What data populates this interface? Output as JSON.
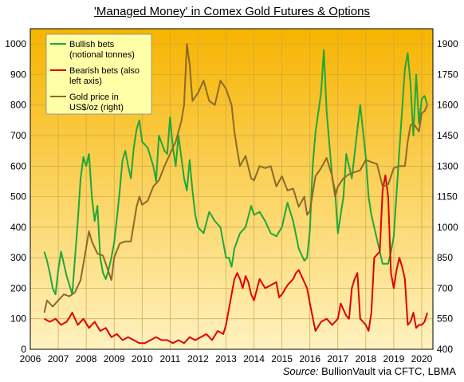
{
  "chart_data": {
    "type": "line",
    "title": "'Managed Money' in Comex Gold Futures & Options",
    "source_label": "Source:",
    "source_text": "BullionVault via CFTC, LBMA",
    "x_ticks": [
      "2006",
      "2007",
      "2008",
      "2009",
      "2010",
      "2011",
      "2012",
      "2013",
      "2014",
      "2015",
      "2016",
      "2017",
      "2018",
      "2019",
      "2020"
    ],
    "xlim": [
      2006,
      2020.4
    ],
    "ylim_left": [
      0,
      1050
    ],
    "ylim_right": [
      400,
      1975
    ],
    "y_ticks_left": [
      0,
      100,
      200,
      300,
      400,
      500,
      600,
      700,
      800,
      900,
      1000
    ],
    "y_ticks_right": [
      400,
      550,
      700,
      850,
      1000,
      1150,
      1300,
      1450,
      1600,
      1750,
      1900
    ],
    "legend_position": "top-left",
    "grid": true,
    "colors": {
      "bullish": "#1fa83a",
      "bearish": "#e00000",
      "gold": "#8a6a2a",
      "background_top": "#f7b400",
      "background_bottom": "#fff2c0",
      "legend_bg": "#ffffa8"
    },
    "series": [
      {
        "name": "Bullish bets (notional tonnes)",
        "axis": "left",
        "x": [
          2006.5,
          2006.6,
          2006.7,
          2006.8,
          2006.9,
          2007.0,
          2007.1,
          2007.2,
          2007.3,
          2007.5,
          2007.6,
          2007.7,
          2007.8,
          2007.9,
          2008.0,
          2008.1,
          2008.2,
          2008.3,
          2008.4,
          2008.5,
          2008.6,
          2008.7,
          2008.8,
          2008.9,
          2009.0,
          2009.1,
          2009.2,
          2009.3,
          2009.4,
          2009.5,
          2009.6,
          2009.7,
          2009.8,
          2009.9,
          2010.0,
          2010.2,
          2010.4,
          2010.5,
          2010.6,
          2010.8,
          2010.9,
          2011.0,
          2011.1,
          2011.2,
          2011.3,
          2011.5,
          2011.6,
          2011.7,
          2011.8,
          2011.9,
          2012.0,
          2012.2,
          2012.4,
          2012.6,
          2012.8,
          2012.9,
          2013.0,
          2013.1,
          2013.2,
          2013.3,
          2013.5,
          2013.7,
          2013.9,
          2014.0,
          2014.2,
          2014.4,
          2014.6,
          2014.8,
          2015.0,
          2015.2,
          2015.4,
          2015.6,
          2015.8,
          2015.9,
          2016.0,
          2016.1,
          2016.2,
          2016.4,
          2016.5,
          2016.6,
          2016.8,
          2016.9,
          2017.0,
          2017.2,
          2017.3,
          2017.5,
          2017.7,
          2017.8,
          2018.0,
          2018.1,
          2018.2,
          2018.4,
          2018.6,
          2018.8,
          2018.9,
          2019.0,
          2019.2,
          2019.4,
          2019.5,
          2019.6,
          2019.7,
          2019.8,
          2019.9,
          2020.0,
          2020.1,
          2020.2
        ],
        "y": [
          320,
          290,
          250,
          200,
          180,
          260,
          320,
          280,
          240,
          180,
          300,
          420,
          560,
          630,
          600,
          640,
          500,
          420,
          470,
          300,
          250,
          230,
          260,
          300,
          350,
          430,
          520,
          620,
          650,
          600,
          560,
          660,
          720,
          750,
          680,
          660,
          600,
          550,
          700,
          650,
          640,
          760,
          660,
          600,
          700,
          560,
          520,
          620,
          520,
          440,
          400,
          380,
          450,
          420,
          400,
          350,
          300,
          300,
          270,
          330,
          380,
          400,
          470,
          440,
          450,
          420,
          380,
          370,
          400,
          480,
          420,
          330,
          290,
          300,
          390,
          600,
          710,
          840,
          980,
          780,
          560,
          520,
          380,
          500,
          640,
          560,
          720,
          800,
          630,
          500,
          440,
          360,
          280,
          280,
          320,
          370,
          650,
          920,
          970,
          870,
          700,
          900,
          740,
          820,
          830,
          800
        ]
      },
      {
        "name": "Bearish bets (also left axis)",
        "axis": "left",
        "x": [
          2006.5,
          2006.7,
          2006.9,
          2007.1,
          2007.3,
          2007.5,
          2007.7,
          2007.9,
          2008.1,
          2008.3,
          2008.5,
          2008.7,
          2008.9,
          2009.1,
          2009.3,
          2009.5,
          2009.7,
          2009.9,
          2010.1,
          2010.3,
          2010.5,
          2010.7,
          2010.9,
          2011.1,
          2011.3,
          2011.5,
          2011.7,
          2011.9,
          2012.1,
          2012.3,
          2012.5,
          2012.7,
          2012.9,
          2013.0,
          2013.1,
          2013.2,
          2013.3,
          2013.4,
          2013.5,
          2013.6,
          2013.7,
          2013.8,
          2013.9,
          2014.0,
          2014.2,
          2014.4,
          2014.6,
          2014.8,
          2014.9,
          2015.0,
          2015.2,
          2015.4,
          2015.5,
          2015.6,
          2015.7,
          2015.8,
          2015.9,
          2016.0,
          2016.2,
          2016.4,
          2016.6,
          2016.8,
          2016.9,
          2017.0,
          2017.1,
          2017.3,
          2017.4,
          2017.5,
          2017.6,
          2017.7,
          2017.8,
          2017.9,
          2018.0,
          2018.1,
          2018.2,
          2018.3,
          2018.5,
          2018.6,
          2018.7,
          2018.8,
          2018.9,
          2019.0,
          2019.1,
          2019.2,
          2019.3,
          2019.4,
          2019.5,
          2019.6,
          2019.7,
          2019.8,
          2019.9,
          2020.0,
          2020.1,
          2020.2
        ],
        "y": [
          100,
          90,
          100,
          80,
          90,
          120,
          80,
          100,
          70,
          90,
          60,
          70,
          40,
          50,
          30,
          40,
          30,
          20,
          20,
          30,
          40,
          30,
          30,
          20,
          30,
          20,
          40,
          30,
          40,
          50,
          30,
          60,
          50,
          80,
          130,
          180,
          230,
          250,
          230,
          200,
          240,
          220,
          180,
          160,
          230,
          200,
          210,
          220,
          170,
          180,
          210,
          230,
          250,
          260,
          240,
          220,
          200,
          150,
          60,
          90,
          100,
          80,
          90,
          100,
          150,
          110,
          100,
          200,
          230,
          250,
          100,
          90,
          80,
          60,
          120,
          300,
          320,
          520,
          570,
          500,
          250,
          200,
          260,
          300,
          270,
          230,
          80,
          90,
          120,
          70,
          80,
          80,
          90,
          120
        ]
      },
      {
        "name": "Gold price in US$/oz (right)",
        "axis": "right",
        "x": [
          2006.5,
          2006.6,
          2006.8,
          2007.0,
          2007.2,
          2007.4,
          2007.6,
          2007.8,
          2008.0,
          2008.1,
          2008.2,
          2008.4,
          2008.6,
          2008.8,
          2008.9,
          2009.0,
          2009.2,
          2009.4,
          2009.6,
          2009.8,
          2009.9,
          2010.0,
          2010.2,
          2010.4,
          2010.6,
          2010.8,
          2011.0,
          2011.2,
          2011.4,
          2011.5,
          2011.6,
          2011.7,
          2011.8,
          2012.0,
          2012.2,
          2012.4,
          2012.6,
          2012.8,
          2013.0,
          2013.2,
          2013.3,
          2013.4,
          2013.5,
          2013.7,
          2013.9,
          2014.0,
          2014.2,
          2014.4,
          2014.6,
          2014.8,
          2015.0,
          2015.2,
          2015.4,
          2015.6,
          2015.8,
          2015.9,
          2016.0,
          2016.2,
          2016.4,
          2016.6,
          2016.8,
          2016.9,
          2017.0,
          2017.2,
          2017.4,
          2017.6,
          2017.8,
          2018.0,
          2018.2,
          2018.4,
          2018.6,
          2018.8,
          2019.0,
          2019.2,
          2019.4,
          2019.5,
          2019.6,
          2019.7,
          2019.9,
          2020.0,
          2020.1,
          2020.2
        ],
        "y": [
          580,
          640,
          610,
          640,
          670,
          660,
          680,
          740,
          900,
          980,
          930,
          870,
          860,
          780,
          740,
          850,
          920,
          930,
          930,
          1100,
          1150,
          1110,
          1130,
          1200,
          1230,
          1300,
          1360,
          1420,
          1520,
          1600,
          1900,
          1800,
          1620,
          1660,
          1720,
          1620,
          1600,
          1720,
          1680,
          1600,
          1470,
          1380,
          1300,
          1350,
          1240,
          1230,
          1300,
          1290,
          1300,
          1200,
          1250,
          1180,
          1190,
          1100,
          1150,
          1060,
          1080,
          1250,
          1290,
          1340,
          1250,
          1150,
          1200,
          1240,
          1260,
          1270,
          1280,
          1330,
          1320,
          1310,
          1200,
          1210,
          1290,
          1300,
          1300,
          1420,
          1500,
          1510,
          1470,
          1560,
          1570,
          1600
        ]
      }
    ]
  }
}
